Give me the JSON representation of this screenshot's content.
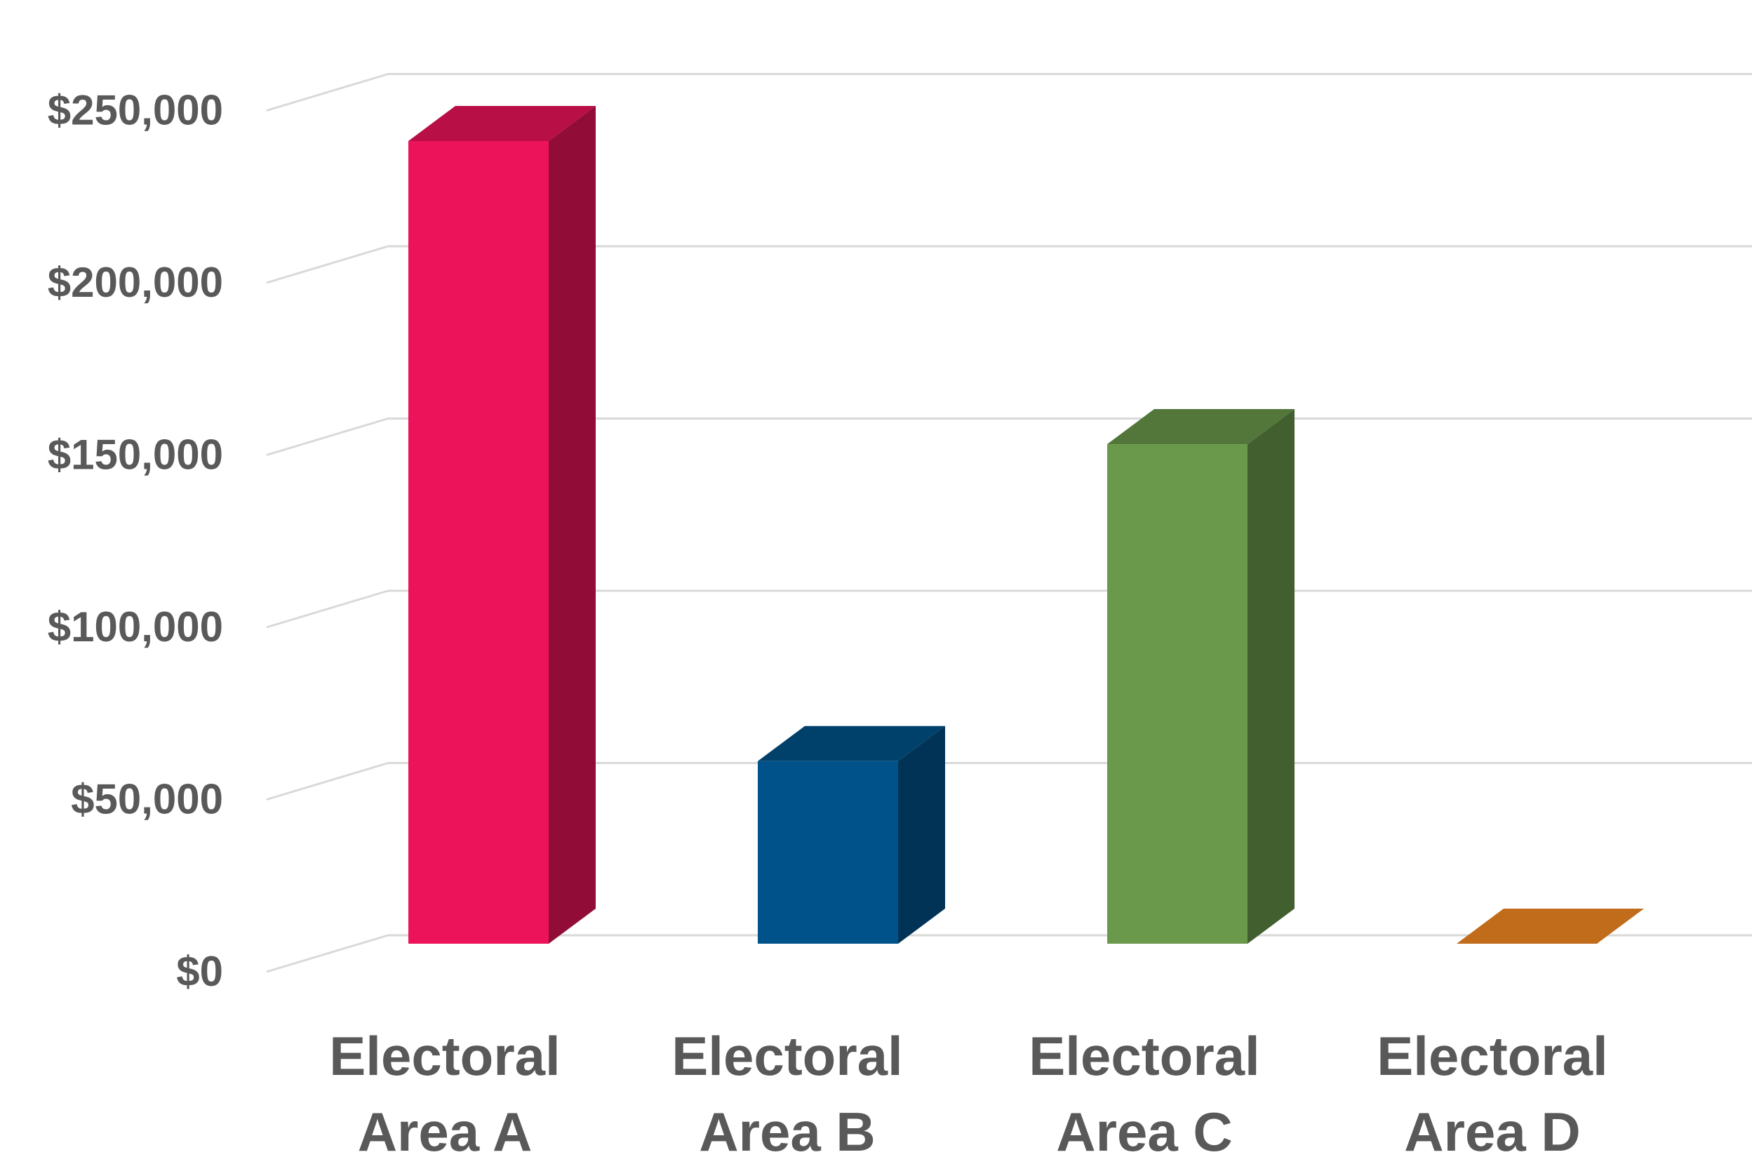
{
  "chart_data": {
    "type": "bar",
    "style": "3d-column",
    "categories": [
      [
        "Electoral",
        "Area A"
      ],
      [
        "Electoral",
        "Area B"
      ],
      [
        "Electoral",
        "Area C"
      ],
      [
        "Electoral",
        "Area D"
      ]
    ],
    "values": [
      233000,
      53000,
      145000,
      0
    ],
    "colors": [
      "#EC135A",
      "#00538A",
      "#6A994B",
      "#C06C1A"
    ],
    "y_ticks": [
      "$0",
      "$50,000",
      "$100,000",
      "$150,000",
      "$200,000",
      "$250,000"
    ],
    "ylim": [
      0,
      250000
    ],
    "grid": true,
    "legend": "none",
    "title": "",
    "xlabel": "",
    "ylabel": ""
  }
}
